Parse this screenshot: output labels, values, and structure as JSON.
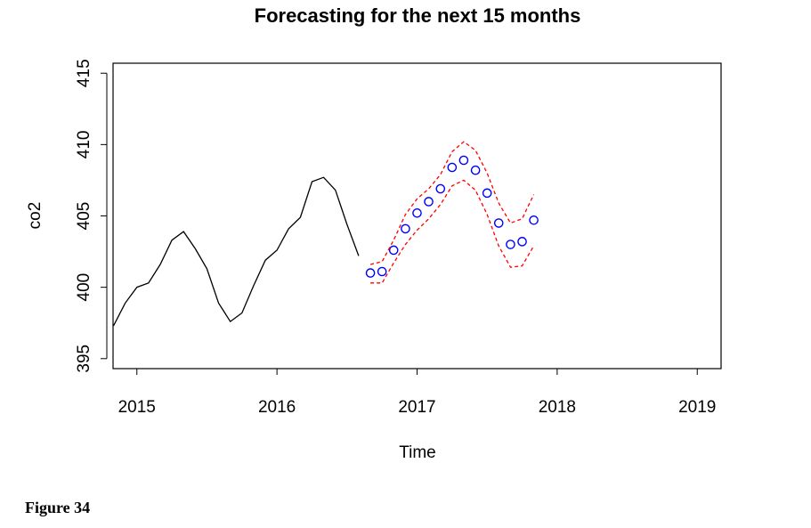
{
  "chart_data": {
    "type": "line",
    "title": "Forecasting for the next 15 months",
    "xlabel": "Time",
    "ylabel": "co2",
    "xlim": [
      2014.83,
      2019.17
    ],
    "ylim": [
      394.3,
      415.7
    ],
    "x_ticks": [
      2015,
      2016,
      2017,
      2018,
      2019
    ],
    "x_tick_labels": [
      "2015",
      "2016",
      "2017",
      "2018",
      "2019"
    ],
    "y_ticks": [
      395,
      400,
      405,
      410,
      415
    ],
    "y_tick_labels": [
      "395",
      "400",
      "405",
      "410",
      "415"
    ],
    "grid": false,
    "series": [
      {
        "style": "solid-line",
        "color": "#000000",
        "x": [
          2014.833,
          2014.917,
          2015.0,
          2015.083,
          2015.167,
          2015.25,
          2015.333,
          2015.417,
          2015.5,
          2015.583,
          2015.667,
          2015.75,
          2015.833,
          2015.917,
          2016.0,
          2016.083,
          2016.167,
          2016.25,
          2016.333,
          2016.417,
          2016.5,
          2016.583
        ],
        "y": [
          397.3,
          398.9,
          400.0,
          400.3,
          401.6,
          403.3,
          403.9,
          402.7,
          401.3,
          398.9,
          397.6,
          398.2,
          400.1,
          401.9,
          402.6,
          404.1,
          404.9,
          407.4,
          407.7,
          406.8,
          404.4,
          402.2
        ]
      },
      {
        "style": "points",
        "color": "#0000ff",
        "x": [
          2016.667,
          2016.75,
          2016.833,
          2016.917,
          2017.0,
          2017.083,
          2017.167,
          2017.25,
          2017.333,
          2017.417,
          2017.5,
          2017.583,
          2017.667,
          2017.75,
          2017.833
        ],
        "y": [
          401.0,
          401.1,
          402.6,
          404.1,
          405.2,
          406.0,
          406.9,
          408.4,
          408.9,
          408.2,
          406.6,
          404.5,
          403.0,
          403.2,
          404.7
        ]
      },
      {
        "style": "dashed-line",
        "color": "#ff0000",
        "x": [
          2016.667,
          2016.75,
          2016.833,
          2016.917,
          2017.0,
          2017.083,
          2017.167,
          2017.25,
          2017.333,
          2017.417,
          2017.5,
          2017.583,
          2017.667,
          2017.75,
          2017.833
        ],
        "y": [
          401.6,
          401.8,
          403.3,
          405.1,
          406.2,
          406.9,
          407.9,
          409.5,
          410.2,
          409.6,
          408.0,
          405.9,
          404.5,
          404.8,
          406.5
        ]
      },
      {
        "style": "dashed-line",
        "color": "#ff0000",
        "x": [
          2016.667,
          2016.75,
          2016.833,
          2016.917,
          2017.0,
          2017.083,
          2017.167,
          2017.25,
          2017.333,
          2017.417,
          2017.5,
          2017.583,
          2017.667,
          2017.75,
          2017.833
        ],
        "y": [
          400.3,
          400.3,
          401.7,
          403.0,
          404.0,
          404.8,
          405.8,
          407.1,
          407.5,
          406.8,
          405.1,
          402.9,
          401.4,
          401.5,
          402.9
        ]
      }
    ]
  },
  "caption": "Figure 34"
}
